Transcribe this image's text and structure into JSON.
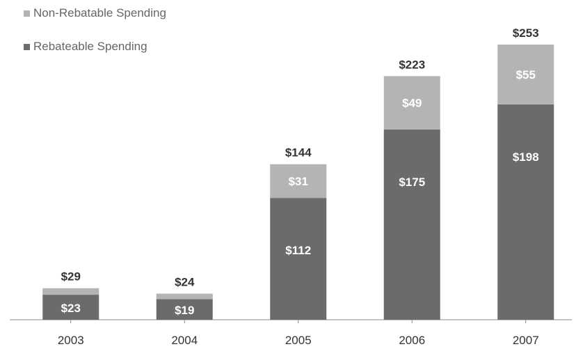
{
  "chart_data": {
    "type": "bar",
    "stacked": true,
    "categories": [
      "2003",
      "2004",
      "2005",
      "2006",
      "2007"
    ],
    "series": [
      {
        "name": "Rebateable Spending",
        "values": [
          23,
          19,
          112,
          175,
          198
        ],
        "labels": [
          "$23",
          "$19",
          "$112",
          "$175",
          "$198"
        ],
        "color": "#6b6b6b"
      },
      {
        "name": "Non-Rebatable Spending",
        "values": [
          6,
          5,
          31,
          49,
          55
        ],
        "labels": [
          "",
          "",
          "$31",
          "$49",
          "$55"
        ],
        "color": "#b4b4b4"
      }
    ],
    "totals": [
      "$29",
      "$24",
      "$144",
      "$223",
      "$253"
    ],
    "ylim": [
      0,
      253
    ],
    "legend_position": "top-left",
    "grid": false
  },
  "legend": [
    {
      "label": "Non-Rebatable Spending",
      "color": "#b4b4b4"
    },
    {
      "label": "Rebateable Spending",
      "color": "#6b6b6b"
    }
  ]
}
